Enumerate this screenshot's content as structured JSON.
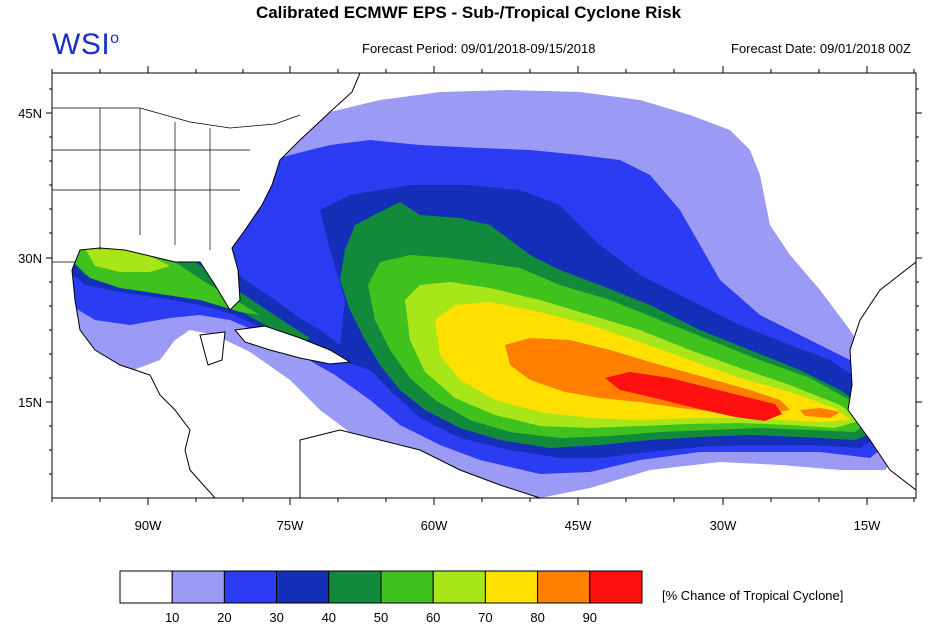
{
  "header": {
    "title": "Calibrated ECMWF EPS - Sub-/Tropical Cyclone Risk",
    "logo": "WSI",
    "forecast_period": "Forecast Period: 09/01/2018-09/15/2018",
    "forecast_date": "Forecast Date: 09/01/2018 00Z"
  },
  "map": {
    "lat_labels": [
      "45N",
      "30N",
      "15N"
    ],
    "lon_labels": [
      "90W",
      "75W",
      "60W",
      "45W",
      "30W",
      "15W"
    ],
    "land_color": "#ffffff",
    "border_color": "#000000"
  },
  "legend": {
    "unit_label": "[% Chance of Tropical Cyclone]",
    "ticks": [
      "10",
      "20",
      "30",
      "40",
      "50",
      "60",
      "70",
      "80",
      "90"
    ],
    "colors": [
      "#ffffff",
      "#9b9bf5",
      "#2b3cf2",
      "#1530b8",
      "#118a3c",
      "#3fc11e",
      "#a8e61a",
      "#ffe000",
      "#ff7f00",
      "#ff1010"
    ]
  }
}
